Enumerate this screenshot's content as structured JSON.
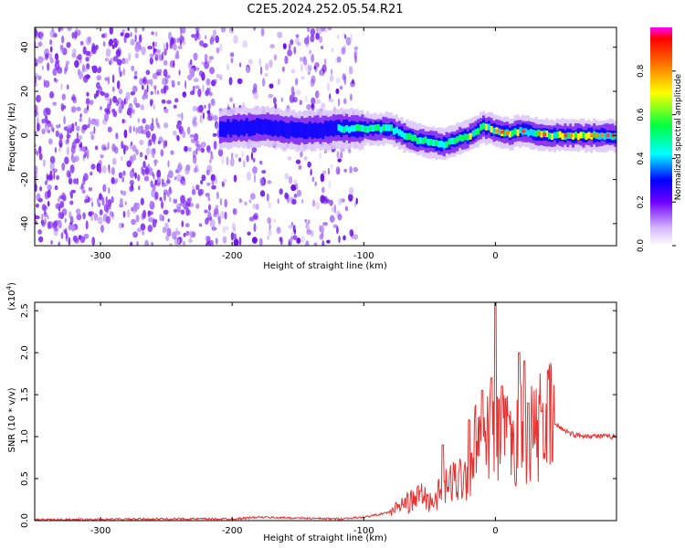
{
  "title": "C2E5.2024.252.05.54.R21",
  "colors": {
    "snr_line": "#e8312f",
    "spectrogram_low": "#7a1ff0",
    "spectrogram_high": "#ff3b3b"
  },
  "chart_data": [
    {
      "type": "heatmap",
      "title": "C2E5.2024.252.05.54.R21",
      "xlabel": "Height of straight line (km)",
      "ylabel": "Frequency (Hz)",
      "xlim": [
        -350,
        92
      ],
      "ylim": [
        -50,
        49
      ],
      "xticks": [
        -300,
        -200,
        -100,
        0
      ],
      "yticks": [
        -40,
        -20,
        0,
        20,
        40
      ],
      "colorbar": {
        "label": "Normalized spectral amplitude",
        "range": [
          0,
          1
        ],
        "ticks": [
          "0.0",
          "0.2",
          "0.4",
          "0.6",
          "0.8"
        ]
      },
      "ridge_center_hz": {
        "x": [
          -210,
          -180,
          -150,
          -120,
          -100,
          -80,
          -70,
          -60,
          -50,
          -40,
          -30,
          -20,
          -10,
          0,
          10,
          20,
          30,
          40,
          60,
          92
        ],
        "y": [
          3,
          4,
          2,
          3,
          3,
          3,
          0,
          -2,
          -3,
          -4,
          -2,
          0,
          4,
          2,
          1,
          2,
          1,
          0,
          0,
          0
        ]
      }
    },
    {
      "type": "line",
      "xlabel": "Height of straight line (km)",
      "ylabel": "SNR (10 * v/v)",
      "yscale_label": "(x10",
      "yscale_exp": "4",
      "xlim": [
        -350,
        92
      ],
      "ylim": [
        0,
        2.6
      ],
      "xticks": [
        -300,
        -200,
        -100,
        0
      ],
      "yticks": [
        "0.0",
        "0.5",
        "1.0",
        "1.5",
        "2.0",
        "2.5"
      ],
      "series": [
        {
          "x": [
            -350,
            -250,
            -200,
            -180,
            -150,
            -120,
            -100,
            -80,
            -70,
            -60,
            -57,
            -50,
            -40,
            -30,
            -20,
            -15,
            -10,
            -5,
            0,
            5,
            10,
            15,
            20,
            25,
            30,
            40,
            50,
            60,
            70,
            92
          ],
          "y": [
            0.01,
            0.02,
            0.02,
            0.04,
            0.03,
            0.02,
            0.04,
            0.1,
            0.2,
            0.25,
            0.32,
            0.22,
            0.35,
            0.5,
            0.6,
            0.95,
            0.7,
            1.0,
            0.9,
            1.0,
            0.95,
            0.9,
            1.1,
            1.05,
            1.05,
            1.2,
            1.1,
            1.02,
            1.01,
            1.0
          ]
        }
      ],
      "spikes": {
        "x": [
          -57,
          -40,
          -20,
          -10,
          -3,
          0,
          5,
          10,
          18,
          22,
          25,
          35
        ],
        "y": [
          0.35,
          0.9,
          1.2,
          1.55,
          1.7,
          2.6,
          1.6,
          1.25,
          2.0,
          1.9,
          1.4,
          1.3
        ]
      }
    }
  ]
}
